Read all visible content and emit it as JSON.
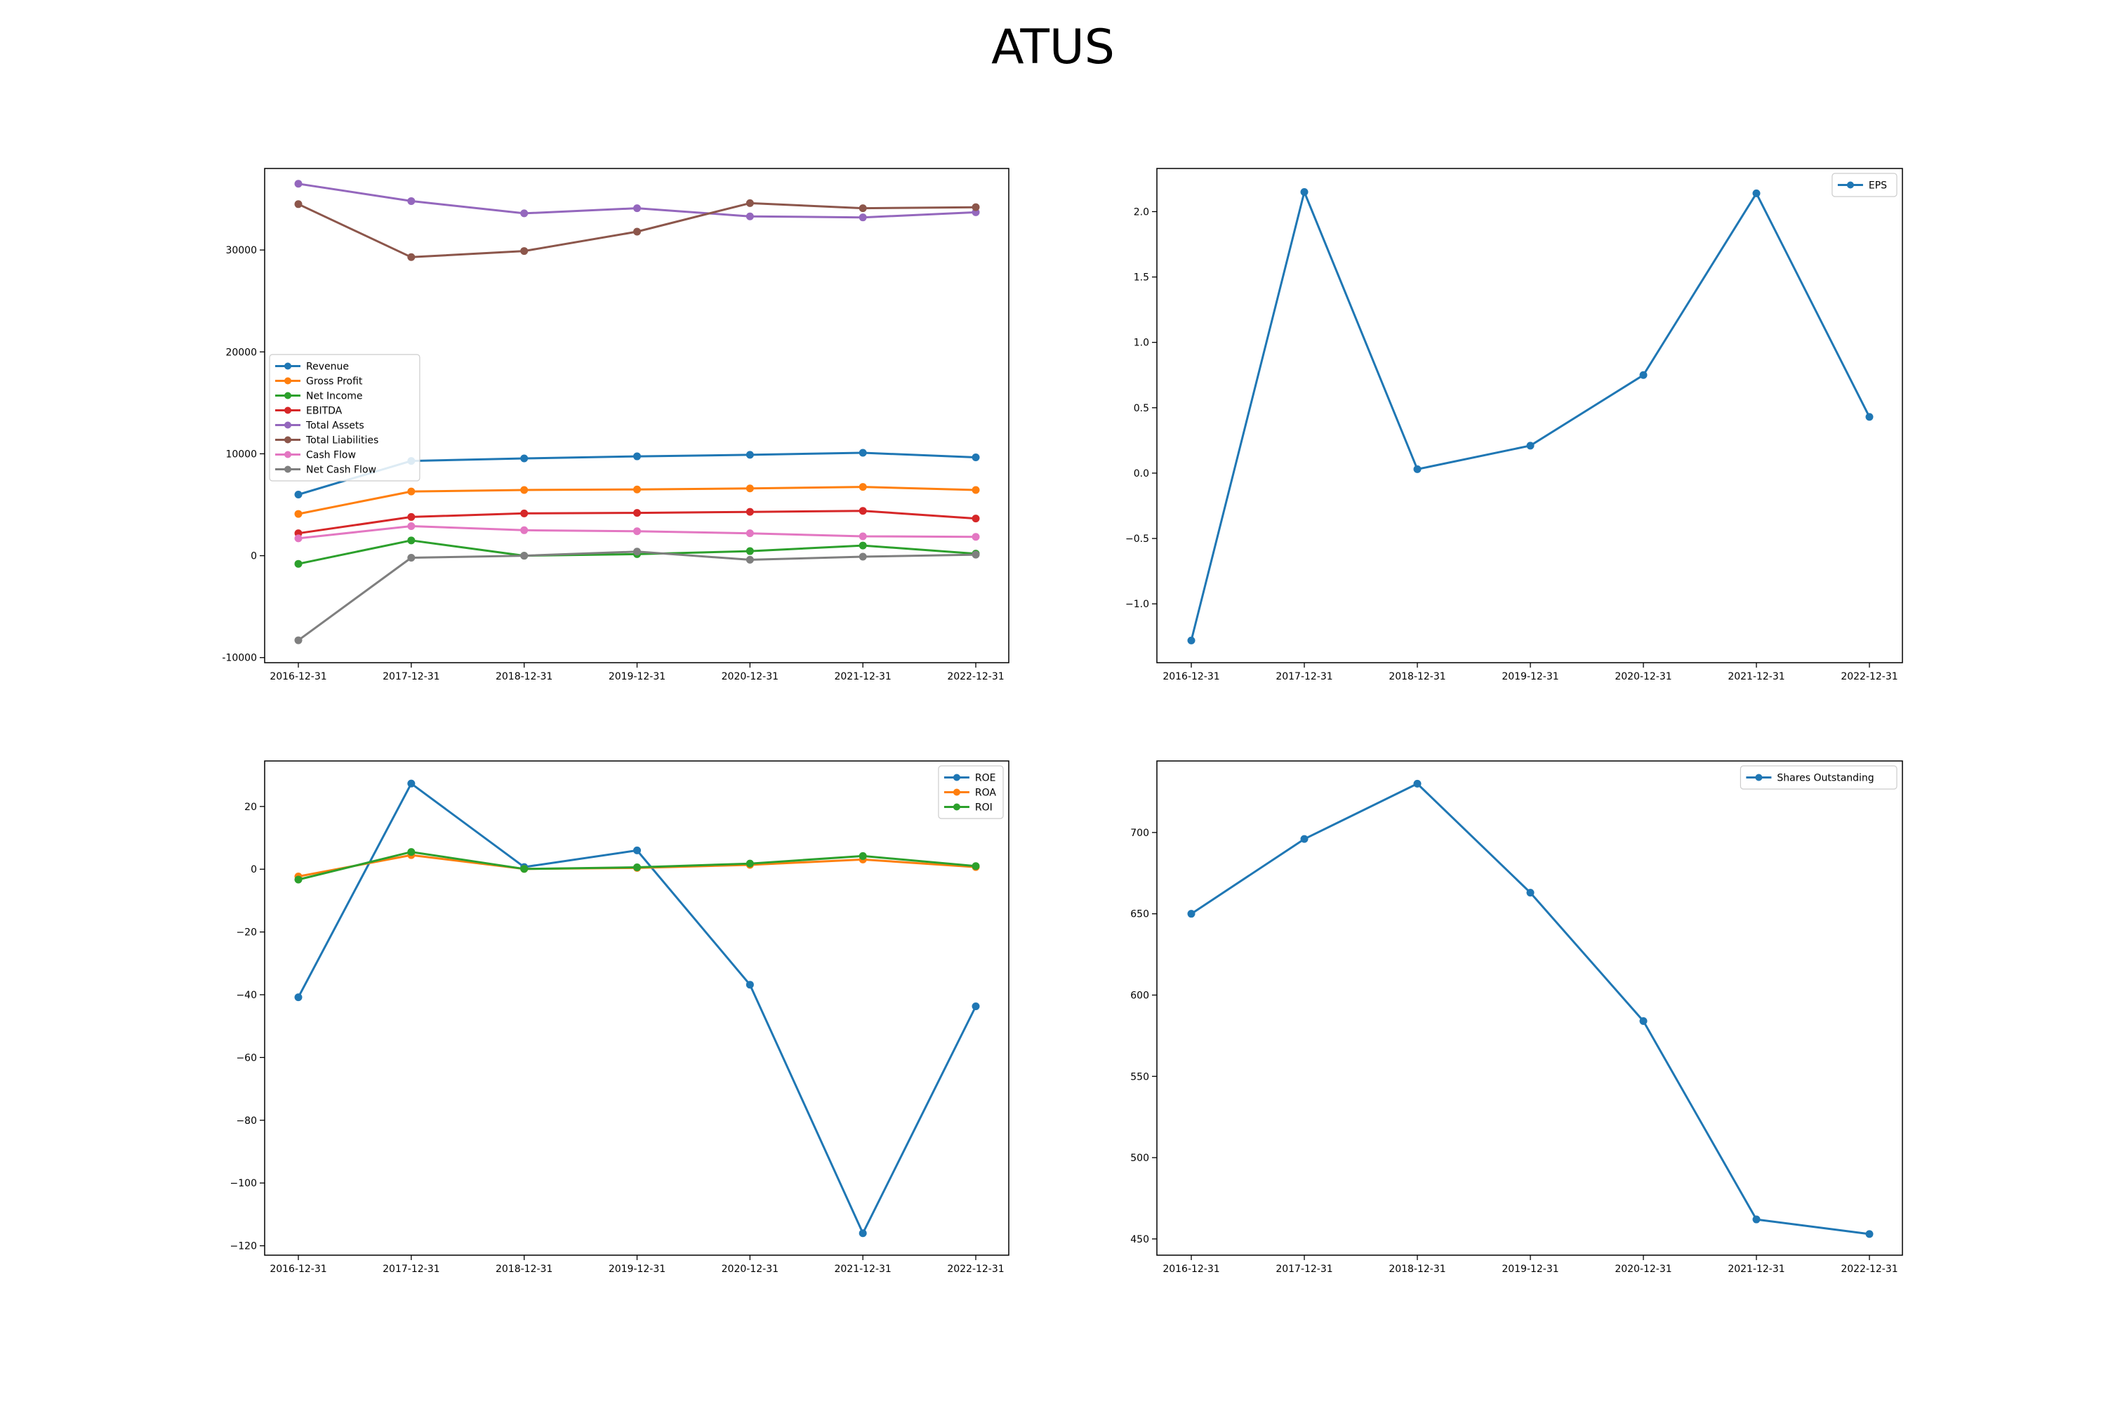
{
  "title": "ATUS",
  "chart_data": [
    {
      "type": "line",
      "categories": [
        "2016-12-31",
        "2017-12-31",
        "2018-12-31",
        "2019-12-31",
        "2020-12-31",
        "2021-12-31",
        "2022-12-31"
      ],
      "ylim": [
        -10500,
        38000
      ],
      "yticks": [
        -10000,
        0,
        10000,
        20000,
        30000
      ],
      "legend": "center-left",
      "series": [
        {
          "name": "Revenue",
          "color": "#1f77b4",
          "values": [
            6000,
            9300,
            9550,
            9750,
            9900,
            10100,
            9650
          ]
        },
        {
          "name": "Gross Profit",
          "color": "#ff7f0e",
          "values": [
            4100,
            6300,
            6450,
            6500,
            6600,
            6750,
            6450
          ]
        },
        {
          "name": "Net Income",
          "color": "#2ca02c",
          "values": [
            -800,
            1500,
            0,
            150,
            450,
            1000,
            200
          ]
        },
        {
          "name": "EBITDA",
          "color": "#d62728",
          "values": [
            2200,
            3800,
            4150,
            4200,
            4300,
            4400,
            3650
          ]
        },
        {
          "name": "Total Assets",
          "color": "#9467bd",
          "values": [
            36500,
            34800,
            33600,
            34100,
            33300,
            33200,
            33700
          ]
        },
        {
          "name": "Total Liabilities",
          "color": "#8c564b",
          "values": [
            34500,
            29300,
            29900,
            31800,
            34600,
            34100,
            34200
          ]
        },
        {
          "name": "Cash Flow",
          "color": "#e377c2",
          "values": [
            1700,
            2900,
            2500,
            2400,
            2200,
            1900,
            1850
          ]
        },
        {
          "name": "Net Cash Flow",
          "color": "#7f7f7f",
          "values": [
            -8300,
            -200,
            0,
            400,
            -400,
            -100,
            100
          ]
        }
      ]
    },
    {
      "type": "line",
      "categories": [
        "2016-12-31",
        "2017-12-31",
        "2018-12-31",
        "2019-12-31",
        "2020-12-31",
        "2021-12-31",
        "2022-12-31"
      ],
      "ylim": [
        -1.45,
        2.33
      ],
      "yticks": [
        -1.0,
        -0.5,
        0.0,
        0.5,
        1.0,
        1.5,
        2.0
      ],
      "yticklabels": [
        "−1.0",
        "−0.5",
        "0.0",
        "0.5",
        "1.0",
        "1.5",
        "2.0"
      ],
      "legend": "top-right",
      "series": [
        {
          "name": "EPS",
          "color": "#1f77b4",
          "values": [
            -1.28,
            2.15,
            0.03,
            0.21,
            0.75,
            2.14,
            0.43
          ]
        }
      ]
    },
    {
      "type": "line",
      "categories": [
        "2016-12-31",
        "2017-12-31",
        "2018-12-31",
        "2019-12-31",
        "2020-12-31",
        "2021-12-31",
        "2022-12-31"
      ],
      "ylim": [
        -123,
        34.5
      ],
      "yticks": [
        -120,
        -100,
        -80,
        -60,
        -40,
        -20,
        0,
        20
      ],
      "yticklabels": [
        "−120",
        "−100",
        "−80",
        "−60",
        "−40",
        "−20",
        "0",
        "20"
      ],
      "legend": "top-right",
      "series": [
        {
          "name": "ROE",
          "color": "#1f77b4",
          "values": [
            -40.8,
            27.3,
            0.7,
            6.0,
            -36.8,
            -116.0,
            -43.7
          ]
        },
        {
          "name": "ROA",
          "color": "#ff7f0e",
          "values": [
            -2.3,
            4.5,
            0.1,
            0.4,
            1.4,
            3.1,
            0.7
          ]
        },
        {
          "name": "ROI",
          "color": "#2ca02c",
          "values": [
            -3.3,
            5.5,
            0.1,
            0.6,
            1.8,
            4.2,
            1.0
          ]
        }
      ]
    },
    {
      "type": "line",
      "categories": [
        "2016-12-31",
        "2017-12-31",
        "2018-12-31",
        "2019-12-31",
        "2020-12-31",
        "2021-12-31",
        "2022-12-31"
      ],
      "ylim": [
        440,
        744
      ],
      "yticks": [
        450,
        500,
        550,
        600,
        650,
        700
      ],
      "legend": "top-right",
      "series": [
        {
          "name": "Shares Outstanding",
          "color": "#1f77b4",
          "values": [
            650,
            696,
            730,
            663,
            584,
            462,
            453
          ]
        }
      ]
    }
  ]
}
